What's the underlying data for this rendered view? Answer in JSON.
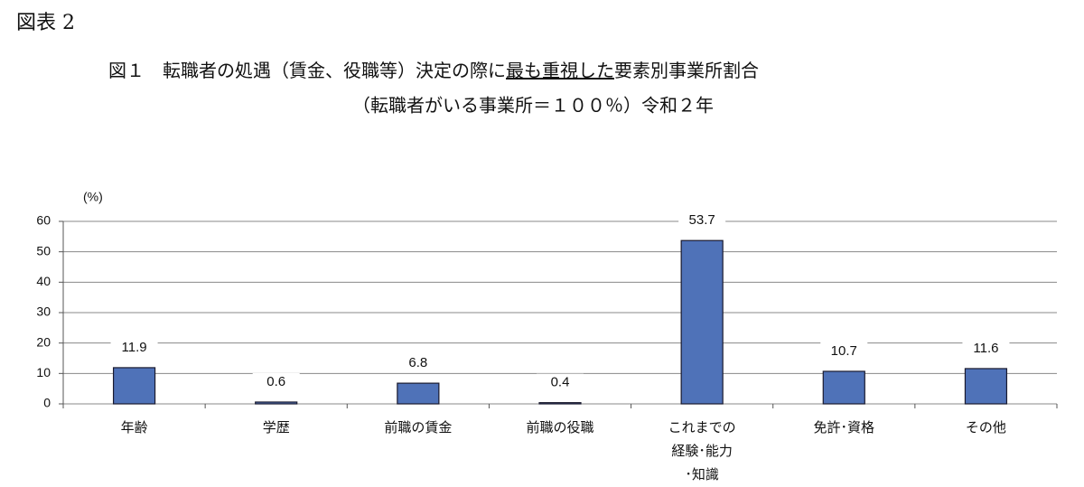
{
  "header": "図表 2",
  "chart_data": {
    "type": "bar",
    "title": [
      {
        "text": "図１　転職者の処遇（賃金、役職等）決定の際に",
        "underline": false
      },
      {
        "text": "最も重視した",
        "underline": true
      },
      {
        "text": "要素別事業所割合",
        "underline": false
      }
    ],
    "subtitle": "（転職者がいる事業所＝１００％）令和２年",
    "y_label": "(%)",
    "categories": [
      [
        "年齢"
      ],
      [
        "学歴"
      ],
      [
        "前職の賃金"
      ],
      [
        "前職の役職"
      ],
      [
        "これまでの",
        "経験･能力",
        "･知識"
      ],
      [
        "免許･資格"
      ],
      [
        "その他"
      ]
    ],
    "values": [
      11.9,
      0.6,
      6.8,
      0.4,
      53.7,
      10.7,
      11.6
    ],
    "value_labels": [
      "11.9",
      "0.6",
      "6.8",
      "0.4",
      "53.7",
      "10.7",
      "11.6"
    ],
    "color": "#4f72b8",
    "ylim": [
      0,
      60
    ],
    "yticks": [
      0,
      10,
      20,
      30,
      40,
      50,
      60
    ],
    "grid": true
  }
}
